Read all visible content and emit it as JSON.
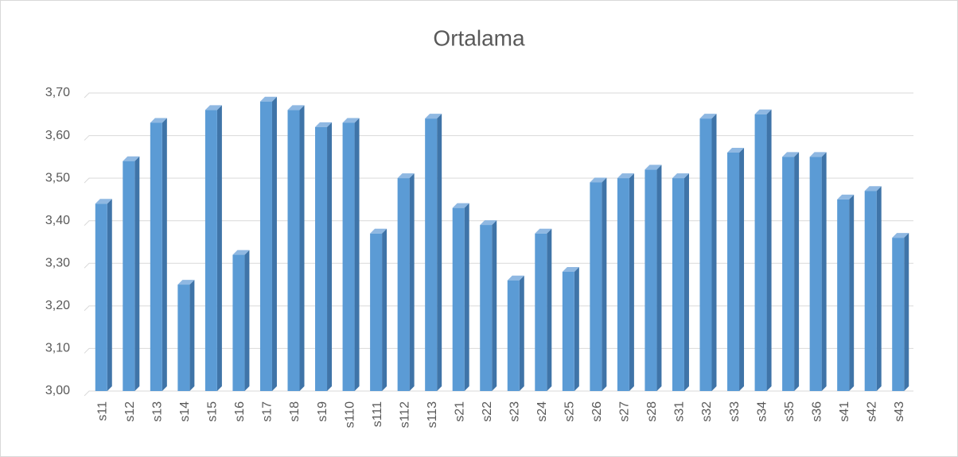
{
  "chart_data": {
    "type": "bar3d",
    "title": "Ortalama",
    "categories": [
      "s11",
      "s12",
      "s13",
      "s14",
      "s15",
      "s16",
      "s17",
      "s18",
      "s19",
      "s110",
      "s111",
      "s112",
      "s113",
      "s21",
      "s22",
      "s23",
      "s24",
      "s25",
      "s26",
      "s27",
      "s28",
      "s31",
      "s32",
      "s33",
      "s34",
      "s35",
      "s36",
      "s41",
      "s42",
      "s43"
    ],
    "values": [
      3.44,
      3.54,
      3.63,
      3.25,
      3.66,
      3.32,
      3.68,
      3.66,
      3.62,
      3.63,
      3.37,
      3.5,
      3.64,
      3.43,
      3.39,
      3.26,
      3.37,
      3.28,
      3.49,
      3.5,
      3.52,
      3.5,
      3.64,
      3.56,
      3.65,
      3.55,
      3.55,
      3.45,
      3.47,
      3.36
    ],
    "color": "#5b9bd5",
    "ylim": [
      3.0,
      3.7
    ],
    "yticks": [
      {
        "value": 3.0,
        "label": "3,00"
      },
      {
        "value": 3.1,
        "label": "3,10"
      },
      {
        "value": 3.2,
        "label": "3,20"
      },
      {
        "value": 3.3,
        "label": "3,30"
      },
      {
        "value": 3.4,
        "label": "3,40"
      },
      {
        "value": 3.5,
        "label": "3,50"
      },
      {
        "value": 3.6,
        "label": "3,60"
      },
      {
        "value": 3.7,
        "label": "3,70"
      }
    ],
    "grid": true
  }
}
